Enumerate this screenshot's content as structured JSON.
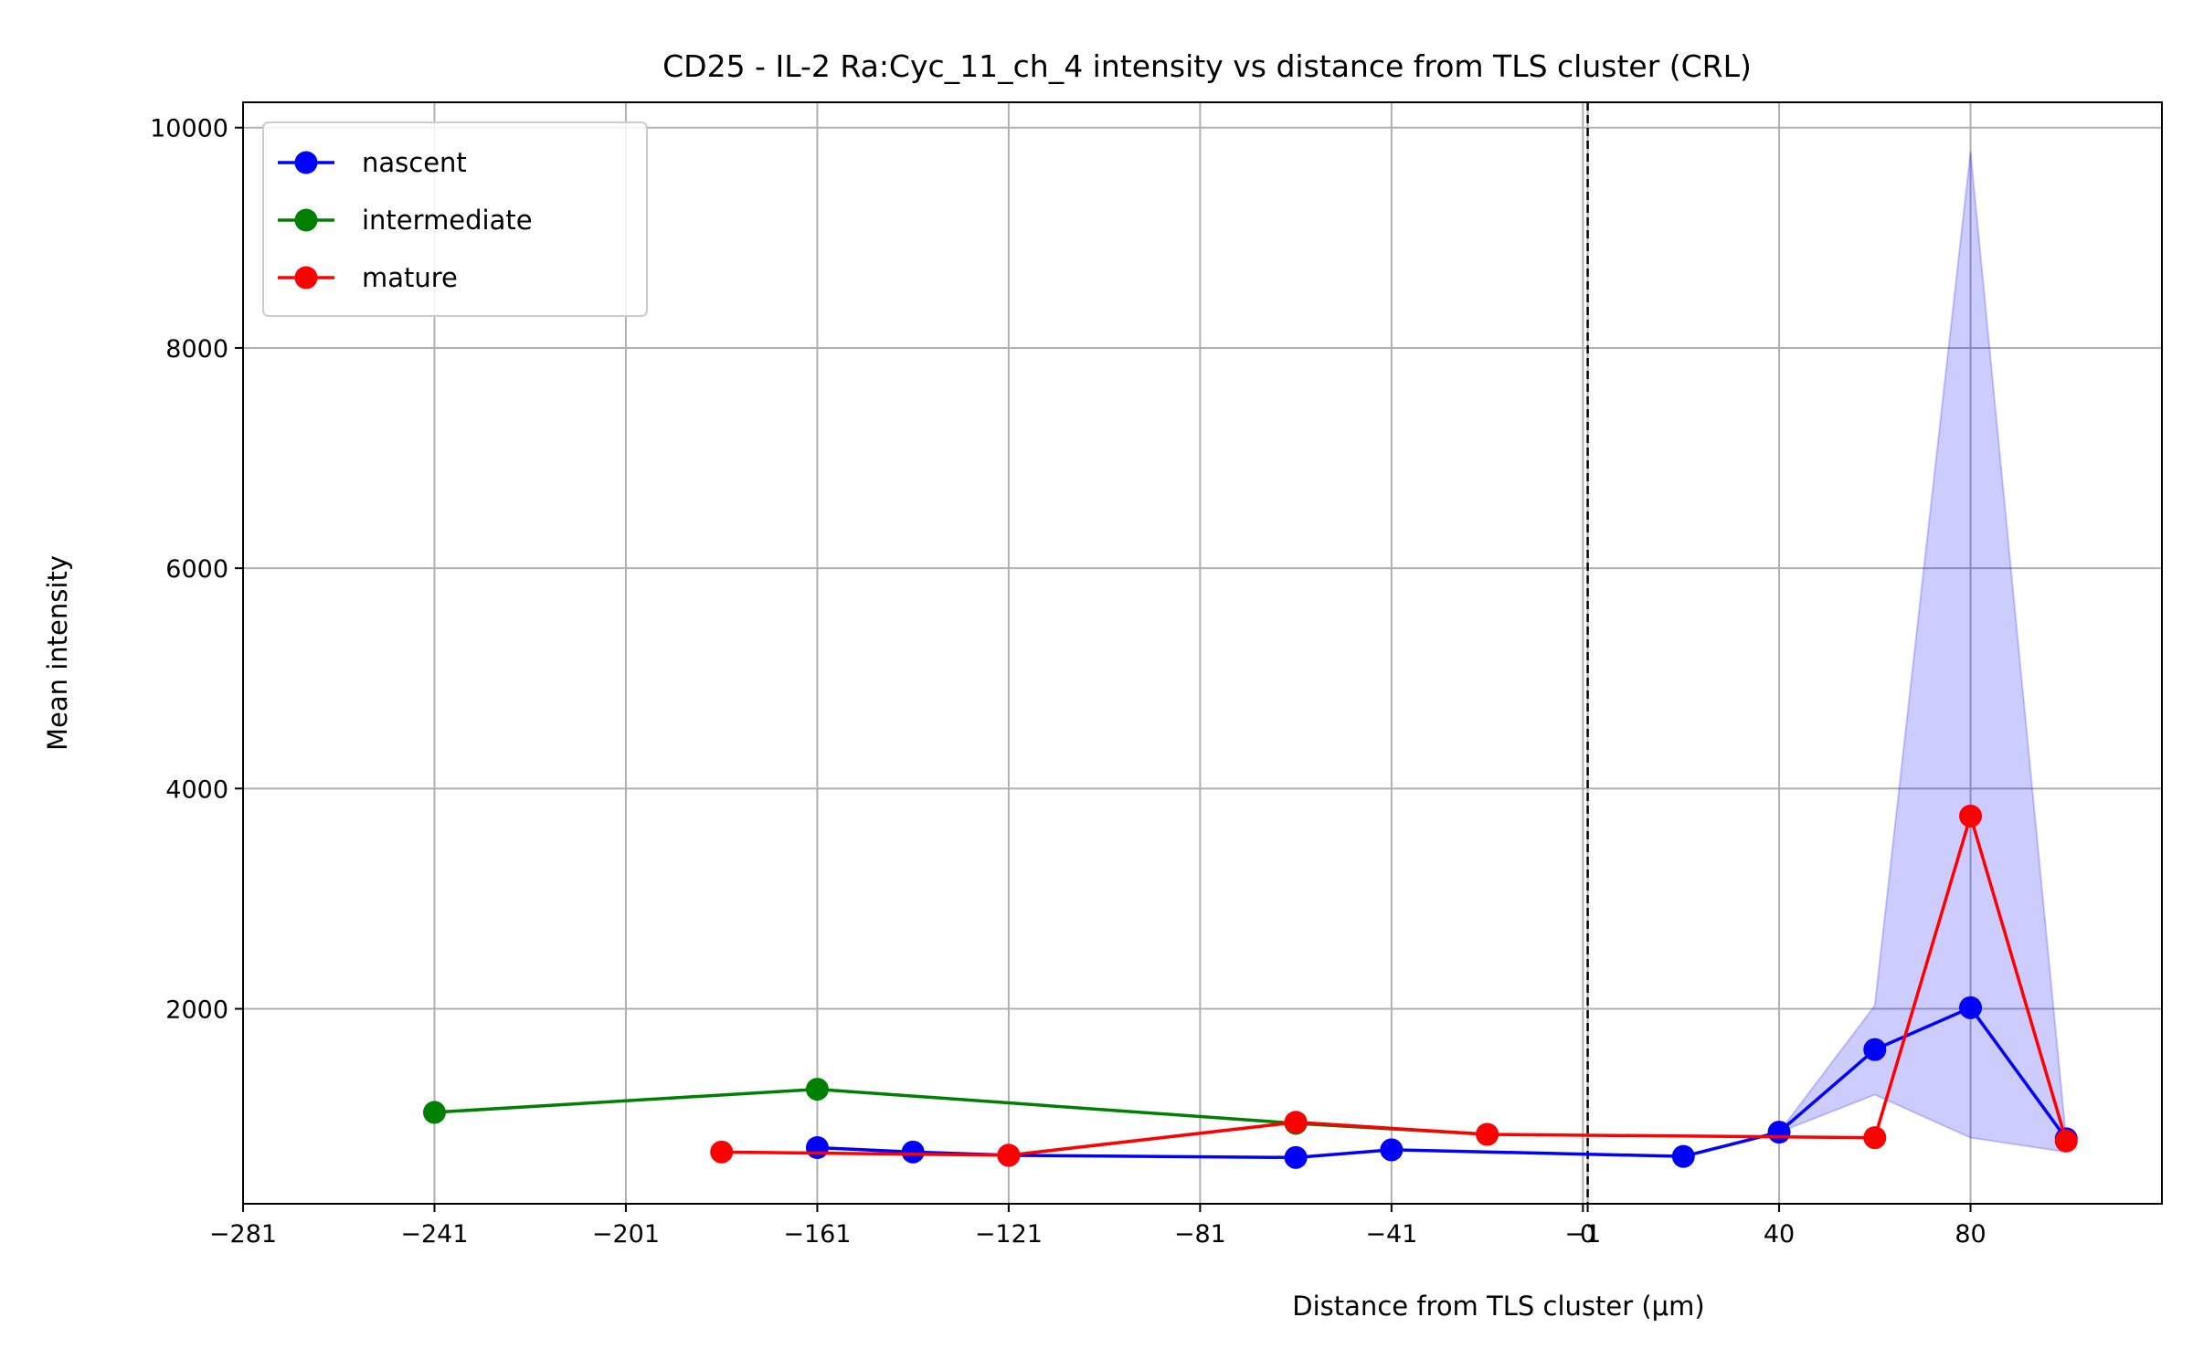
{
  "chart_data": {
    "type": "line",
    "title": "CD25 - IL-2 Ra:Cyc_11_ch_4 intensity vs distance from TLS cluster (CRL)",
    "xlabel": "Distance from TLS cluster (μm)",
    "ylabel": "Mean intensity",
    "xlim": [
      -281,
      120
    ],
    "ylim": [
      230,
      10230
    ],
    "x_ticks": [
      -281,
      -241,
      -201,
      -161,
      -121,
      -81,
      -41,
      -1,
      0,
      40,
      80
    ],
    "x_tick_labels": [
      "−281",
      "−241",
      "−201",
      "−161",
      "−121",
      "−81",
      "−41",
      "−1",
      "0",
      "40",
      "80"
    ],
    "y_ticks": [
      2000,
      4000,
      6000,
      8000,
      10000
    ],
    "y_tick_labels": [
      "2000",
      "4000",
      "6000",
      "8000",
      "10000"
    ],
    "grid": true,
    "legend_position": "top-left",
    "reference_lines": [
      {
        "x": 0,
        "style": "dashed",
        "color": "#000000"
      }
    ],
    "series": [
      {
        "name": "nascent",
        "color": "#0000ff",
        "x": [
          -161,
          -141,
          -121,
          -61,
          -41,
          20,
          40,
          60,
          80,
          100
        ],
        "y": [
          740,
          700,
          670,
          650,
          720,
          660,
          880,
          1630,
          2010,
          820
        ],
        "band": {
          "x": [
            40,
            60,
            80,
            100
          ],
          "lower": [
            880,
            1220,
            830,
            700
          ],
          "upper": [
            880,
            2030,
            9780,
            820
          ],
          "color": "#0000ff",
          "opacity": 0.2
        }
      },
      {
        "name": "intermediate",
        "color": "#008000",
        "x": [
          -241,
          -161,
          -61,
          -21
        ],
        "y": [
          1060,
          1270,
          960,
          860
        ]
      },
      {
        "name": "mature",
        "color": "#ff0000",
        "x": [
          -181,
          -121,
          -61,
          -21,
          60,
          80,
          100
        ],
        "y": [
          700,
          670,
          970,
          860,
          830,
          3750,
          800
        ]
      }
    ]
  }
}
